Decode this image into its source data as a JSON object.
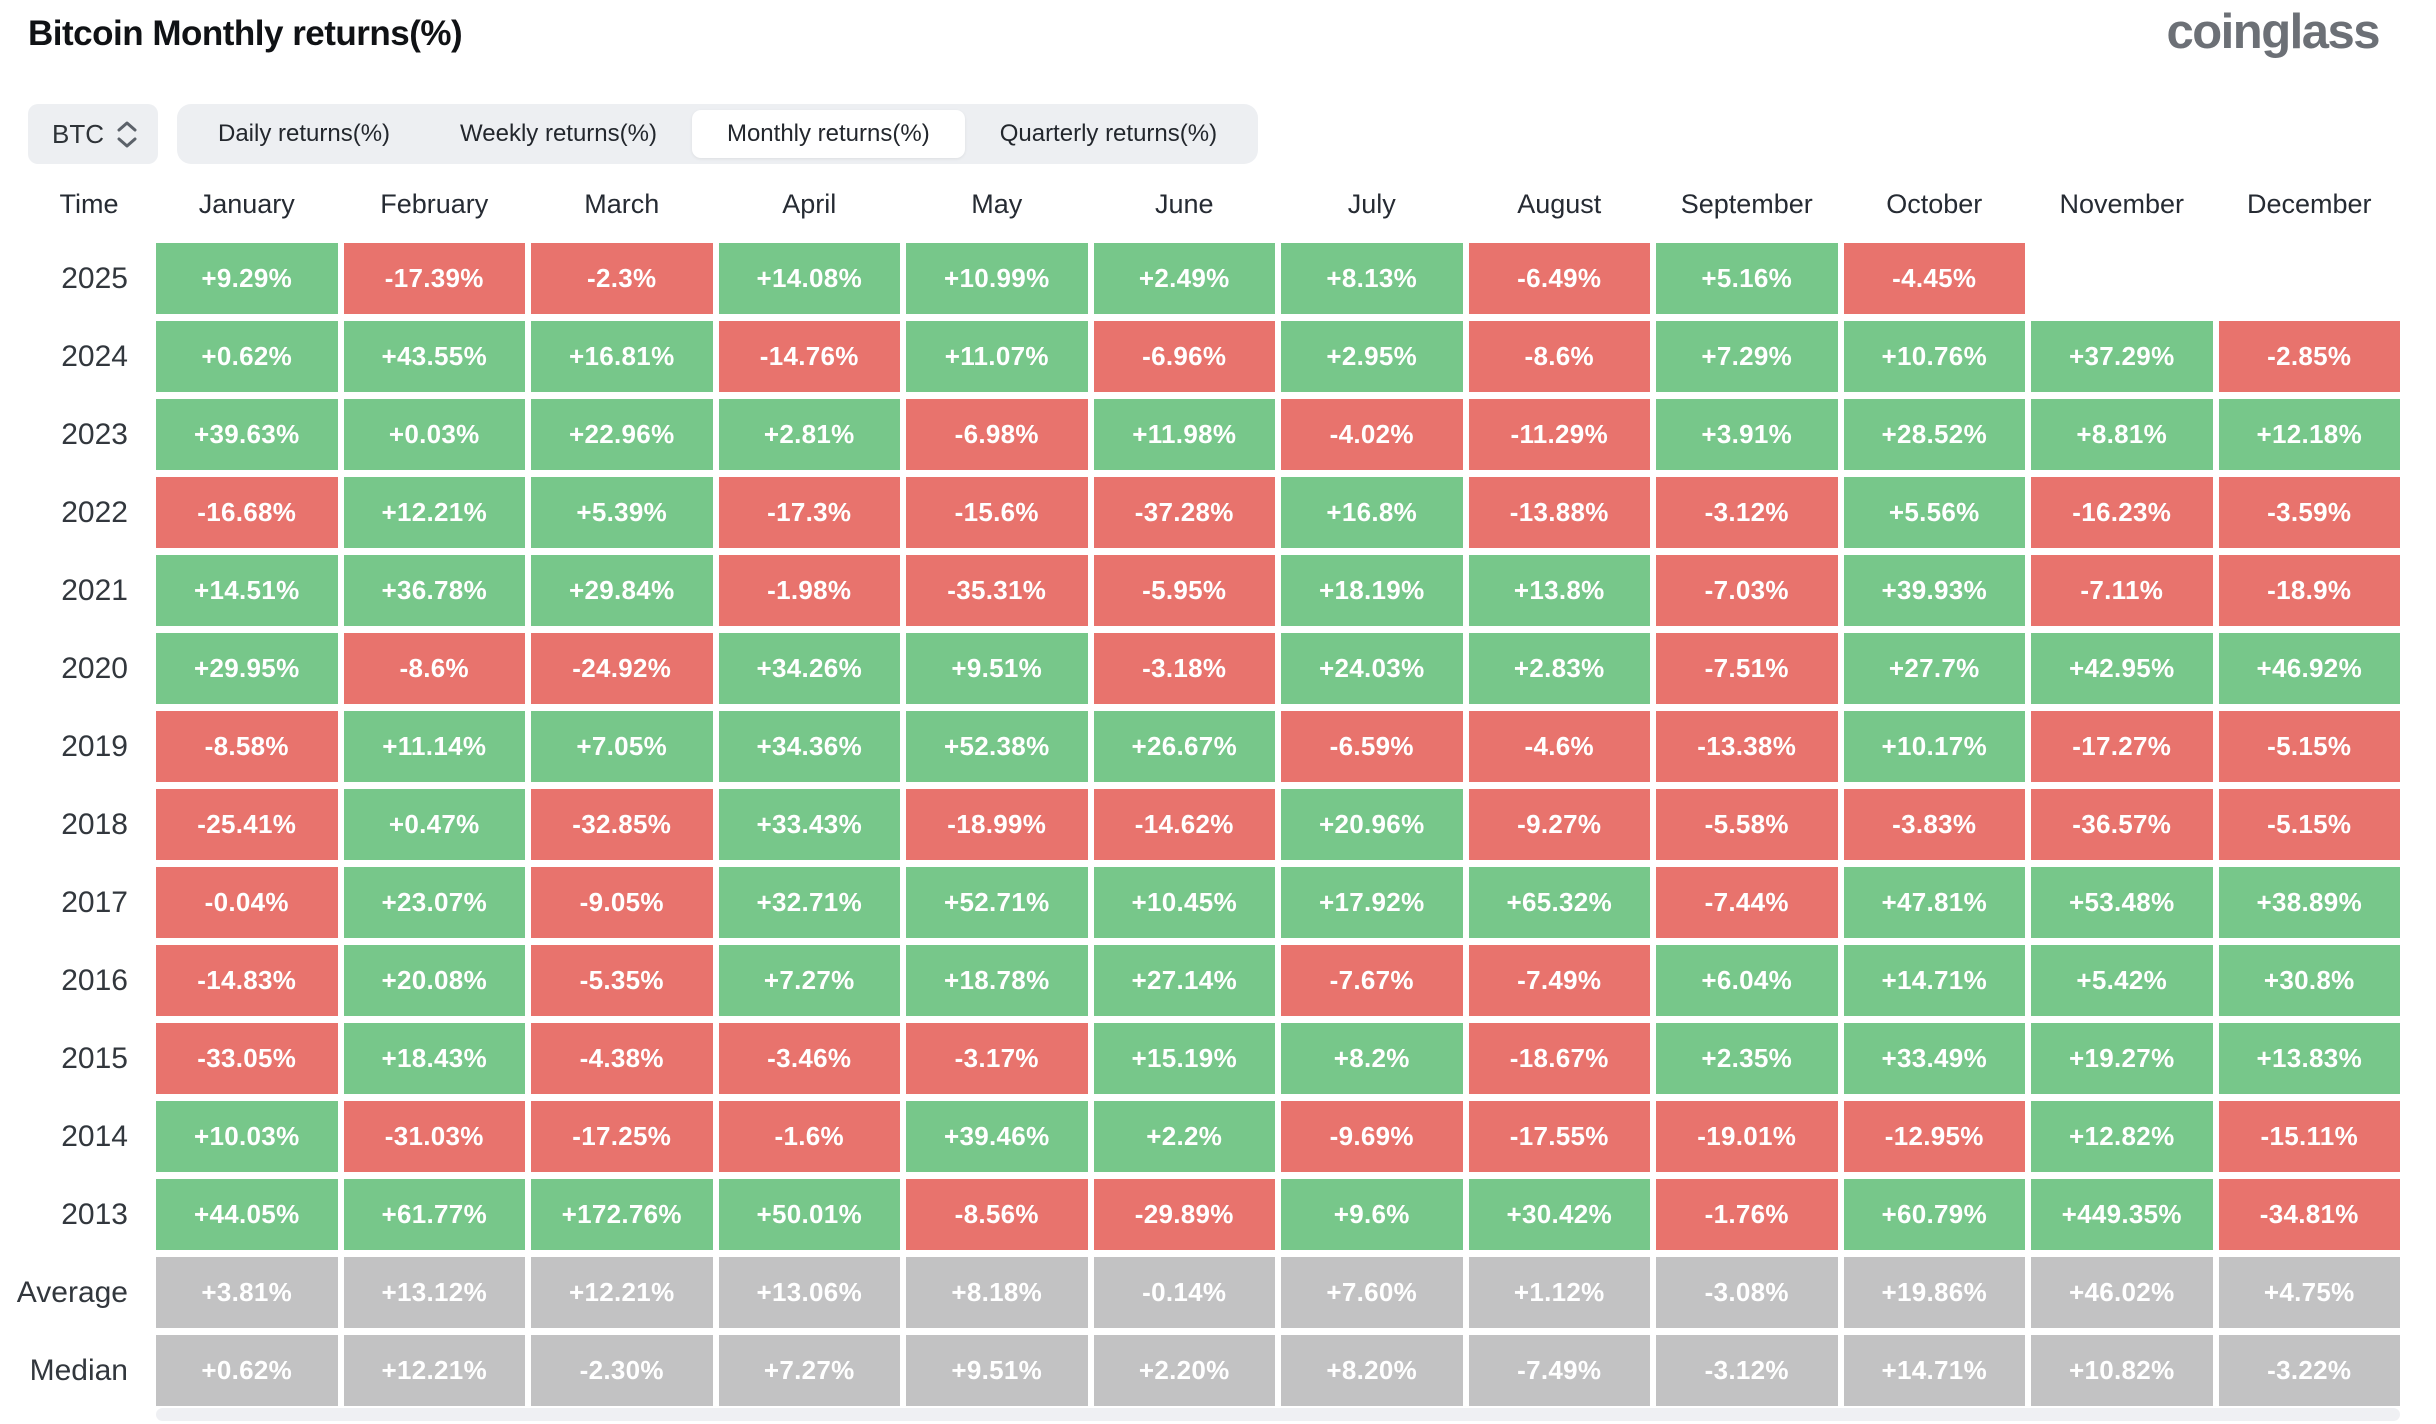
{
  "header": {
    "title": "Bitcoin Monthly returns(%)",
    "logo": "coinglass"
  },
  "controls": {
    "symbol_select": {
      "value": "BTC"
    },
    "tabs": [
      {
        "label": "Daily returns(%)",
        "active": false
      },
      {
        "label": "Weekly returns(%)",
        "active": false
      },
      {
        "label": "Monthly returns(%)",
        "active": true
      },
      {
        "label": "Quarterly returns(%)",
        "active": false
      }
    ]
  },
  "colors": {
    "positive": "#77c78a",
    "negative": "#e8736d",
    "summary": "#c2c2c3",
    "header_text": "#262b33",
    "logo_gray": "#6c7076"
  },
  "chart_data": {
    "type": "heatmap",
    "title": "Bitcoin Monthly returns(%)",
    "unit": "%",
    "time_label": "Time",
    "months": [
      "January",
      "February",
      "March",
      "April",
      "May",
      "June",
      "July",
      "August",
      "September",
      "October",
      "November",
      "December"
    ],
    "rows": [
      {
        "label": "2025",
        "type": "year",
        "values": [
          "+9.29%",
          "-17.39%",
          "-2.3%",
          "+14.08%",
          "+10.99%",
          "+2.49%",
          "+8.13%",
          "-6.49%",
          "+5.16%",
          "-4.45%",
          null,
          null
        ]
      },
      {
        "label": "2024",
        "type": "year",
        "values": [
          "+0.62%",
          "+43.55%",
          "+16.81%",
          "-14.76%",
          "+11.07%",
          "-6.96%",
          "+2.95%",
          "-8.6%",
          "+7.29%",
          "+10.76%",
          "+37.29%",
          "-2.85%"
        ]
      },
      {
        "label": "2023",
        "type": "year",
        "values": [
          "+39.63%",
          "+0.03%",
          "+22.96%",
          "+2.81%",
          "-6.98%",
          "+11.98%",
          "-4.02%",
          "-11.29%",
          "+3.91%",
          "+28.52%",
          "+8.81%",
          "+12.18%"
        ]
      },
      {
        "label": "2022",
        "type": "year",
        "values": [
          "-16.68%",
          "+12.21%",
          "+5.39%",
          "-17.3%",
          "-15.6%",
          "-37.28%",
          "+16.8%",
          "-13.88%",
          "-3.12%",
          "+5.56%",
          "-16.23%",
          "-3.59%"
        ]
      },
      {
        "label": "2021",
        "type": "year",
        "values": [
          "+14.51%",
          "+36.78%",
          "+29.84%",
          "-1.98%",
          "-35.31%",
          "-5.95%",
          "+18.19%",
          "+13.8%",
          "-7.03%",
          "+39.93%",
          "-7.11%",
          "-18.9%"
        ]
      },
      {
        "label": "2020",
        "type": "year",
        "values": [
          "+29.95%",
          "-8.6%",
          "-24.92%",
          "+34.26%",
          "+9.51%",
          "-3.18%",
          "+24.03%",
          "+2.83%",
          "-7.51%",
          "+27.7%",
          "+42.95%",
          "+46.92%"
        ]
      },
      {
        "label": "2019",
        "type": "year",
        "values": [
          "-8.58%",
          "+11.14%",
          "+7.05%",
          "+34.36%",
          "+52.38%",
          "+26.67%",
          "-6.59%",
          "-4.6%",
          "-13.38%",
          "+10.17%",
          "-17.27%",
          "-5.15%"
        ]
      },
      {
        "label": "2018",
        "type": "year",
        "values": [
          "-25.41%",
          "+0.47%",
          "-32.85%",
          "+33.43%",
          "-18.99%",
          "-14.62%",
          "+20.96%",
          "-9.27%",
          "-5.58%",
          "-3.83%",
          "-36.57%",
          "-5.15%"
        ]
      },
      {
        "label": "2017",
        "type": "year",
        "values": [
          "-0.04%",
          "+23.07%",
          "-9.05%",
          "+32.71%",
          "+52.71%",
          "+10.45%",
          "+17.92%",
          "+65.32%",
          "-7.44%",
          "+47.81%",
          "+53.48%",
          "+38.89%"
        ]
      },
      {
        "label": "2016",
        "type": "year",
        "values": [
          "-14.83%",
          "+20.08%",
          "-5.35%",
          "+7.27%",
          "+18.78%",
          "+27.14%",
          "-7.67%",
          "-7.49%",
          "+6.04%",
          "+14.71%",
          "+5.42%",
          "+30.8%"
        ]
      },
      {
        "label": "2015",
        "type": "year",
        "values": [
          "-33.05%",
          "+18.43%",
          "-4.38%",
          "-3.46%",
          "-3.17%",
          "+15.19%",
          "+8.2%",
          "-18.67%",
          "+2.35%",
          "+33.49%",
          "+19.27%",
          "+13.83%"
        ]
      },
      {
        "label": "2014",
        "type": "year",
        "values": [
          "+10.03%",
          "-31.03%",
          "-17.25%",
          "-1.6%",
          "+39.46%",
          "+2.2%",
          "-9.69%",
          "-17.55%",
          "-19.01%",
          "-12.95%",
          "+12.82%",
          "-15.11%"
        ]
      },
      {
        "label": "2013",
        "type": "year",
        "values": [
          "+44.05%",
          "+61.77%",
          "+172.76%",
          "+50.01%",
          "-8.56%",
          "-29.89%",
          "+9.6%",
          "+30.42%",
          "-1.76%",
          "+60.79%",
          "+449.35%",
          "-34.81%"
        ]
      },
      {
        "label": "Average",
        "type": "summary",
        "values": [
          "+3.81%",
          "+13.12%",
          "+12.21%",
          "+13.06%",
          "+8.18%",
          "-0.14%",
          "+7.60%",
          "+1.12%",
          "-3.08%",
          "+19.86%",
          "+46.02%",
          "+4.75%"
        ]
      },
      {
        "label": "Median",
        "type": "summary",
        "values": [
          "+0.62%",
          "+12.21%",
          "-2.30%",
          "+7.27%",
          "+9.51%",
          "+2.20%",
          "+8.20%",
          "-7.49%",
          "-3.12%",
          "+14.71%",
          "+10.82%",
          "-3.22%"
        ]
      }
    ]
  }
}
